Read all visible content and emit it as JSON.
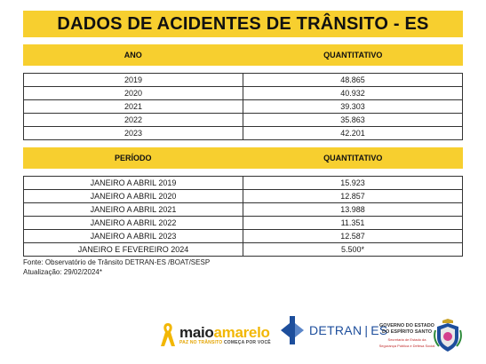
{
  "title": "DADOS DE ACIDENTES DE TRÂNSITO - ES",
  "table1": {
    "headers": [
      "ANO",
      "QUANTITATIVO"
    ],
    "rows": [
      [
        "2019",
        "48.865"
      ],
      [
        "2020",
        "40.932"
      ],
      [
        "2021",
        "39.303"
      ],
      [
        "2022",
        "35.863"
      ],
      [
        "2023",
        "42.201"
      ]
    ]
  },
  "table2": {
    "headers": [
      "PERÍODO",
      "QUANTITATIVO"
    ],
    "rows": [
      [
        "JANEIRO A ABRIL 2019",
        "15.923"
      ],
      [
        "JANEIRO A ABRIL 2020",
        "12.857"
      ],
      [
        "JANEIRO A ABRIL 2021",
        "13.988"
      ],
      [
        "JANEIRO A ABRIL 2022",
        "11.351"
      ],
      [
        "JANEIRO A ABRIL 2023",
        "12.587"
      ],
      [
        "JANEIRO E FEVEREIRO 2024",
        "5.500*"
      ]
    ]
  },
  "notes": {
    "source": "Fonte: Observatório de Trânsito DETRAN-ES /BOAT/SESP",
    "update": "Atualização: 29/02/2024*"
  },
  "logos": {
    "maio_amarelo": {
      "title_part1": "maio",
      "title_part2": "amarelo",
      "slogan_part1": "PAZ NO TRÂNSITO",
      "slogan_part2": "COMEÇA POR VOCÊ"
    },
    "detran": {
      "name": "DETRAN",
      "separator": "|",
      "state": "ES"
    },
    "governo": {
      "line1": "GOVERNO DO ESTADO",
      "line2": "DO ESPÍRITO SANTO",
      "line3": "Secretaria de Estado da",
      "line4": "Segurança Pública e Defesa Social"
    }
  },
  "colors": {
    "accent_yellow": "#f7cf2f",
    "detran_blue": "#1d4e9c"
  }
}
